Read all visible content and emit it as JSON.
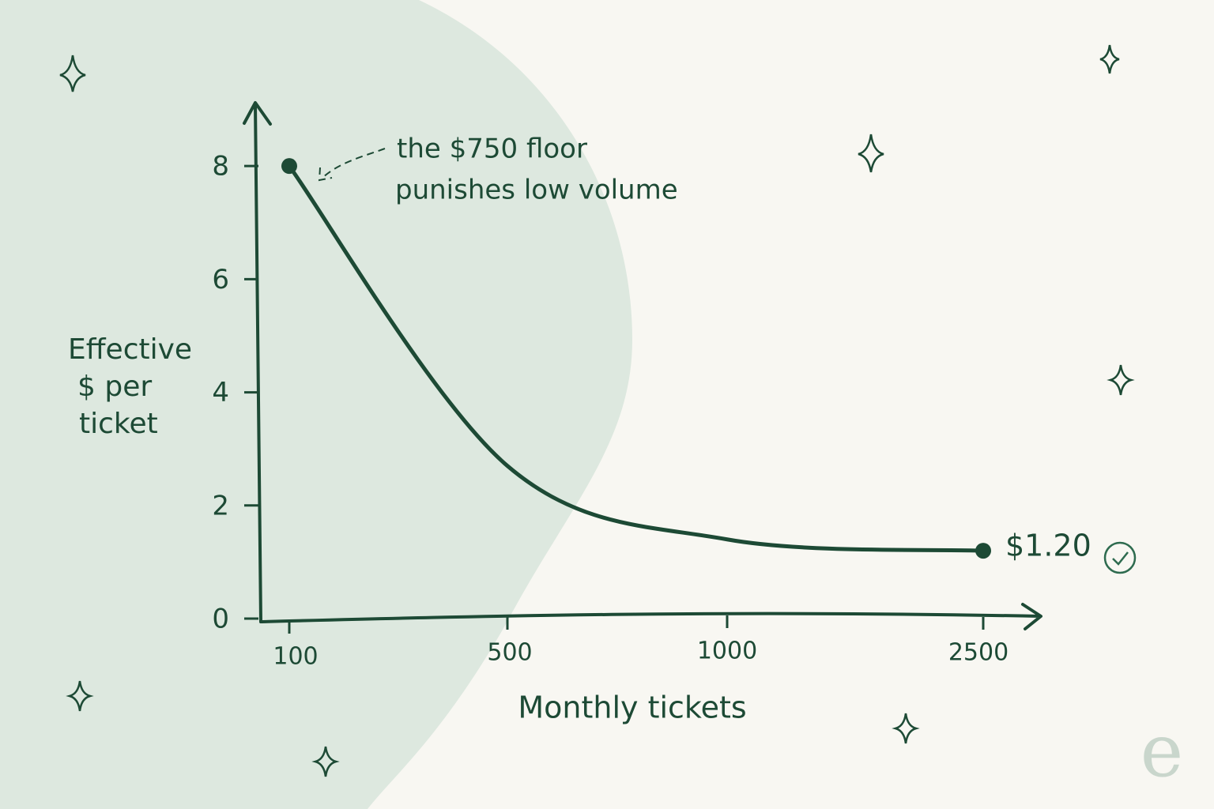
{
  "chart_data": {
    "type": "line",
    "x_label": "Monthly tickets",
    "y_label": [
      "Effective",
      "$ per",
      "ticket"
    ],
    "annotation": [
      "the $750 floor",
      "punishes low volume"
    ],
    "categories": [
      "100",
      "500",
      "1000",
      "2500"
    ],
    "values": [
      8,
      2.7,
      1.4,
      1.2
    ],
    "value_labels": [
      null,
      null,
      null,
      "$1.20"
    ],
    "color": "#1d4a35",
    "ylim": [
      0,
      9.1
    ],
    "yticks": [
      0,
      2,
      4,
      6,
      8
    ],
    "logo": "e"
  }
}
